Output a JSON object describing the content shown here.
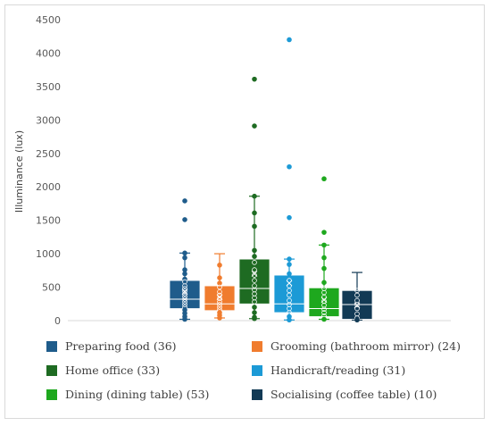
{
  "chart_data": {
    "type": "box",
    "ylabel": "Illuminance (lux)",
    "ylim": [
      0,
      4500
    ],
    "yticks": [
      0,
      500,
      1000,
      1500,
      2000,
      2500,
      3000,
      3500,
      4000,
      4500
    ],
    "ytick_labels": [
      "0",
      "500",
      "1000",
      "1500",
      "2000",
      "2500",
      "3000",
      "3500",
      "4000",
      "4500"
    ],
    "grid": false,
    "legend_position": "bottom",
    "series": [
      {
        "name": "Preparing food (36)",
        "color": "#1f5c8b",
        "min": 20,
        "q1": 180,
        "median": 320,
        "q3": 600,
        "max": 1010,
        "mean": 430,
        "points": [
          1790,
          1510,
          1010,
          940,
          760,
          700,
          620,
          580,
          520,
          480,
          440,
          400,
          360,
          320,
          280,
          240,
          200,
          160,
          110,
          60,
          20
        ],
        "outliers": [
          1790,
          1510
        ]
      },
      {
        "name": "Grooming (bathroom mirror) (24)",
        "color": "#f07c2e",
        "min": 40,
        "q1": 150,
        "median": 250,
        "q3": 520,
        "max": 1000,
        "mean": 350,
        "points": [
          830,
          640,
          560,
          500,
          430,
          380,
          330,
          280,
          240,
          200,
          160,
          120,
          80,
          40
        ],
        "outliers": []
      },
      {
        "name": "Home office (33)",
        "color": "#1e6b22",
        "min": 30,
        "q1": 250,
        "median": 480,
        "q3": 920,
        "max": 1860,
        "mean": 700,
        "points": [
          3610,
          2910,
          1860,
          1610,
          1410,
          1050,
          960,
          870,
          760,
          680,
          600,
          520,
          460,
          400,
          340,
          280,
          200,
          120,
          50,
          30
        ],
        "outliers": [
          3610,
          2910
        ]
      },
      {
        "name": "Handicraft/reading (31)",
        "color": "#1c9ad6",
        "min": 10,
        "q1": 120,
        "median": 250,
        "q3": 680,
        "max": 920,
        "mean": 560,
        "points": [
          4200,
          2300,
          1540,
          920,
          840,
          700,
          600,
          520,
          450,
          380,
          300,
          240,
          180,
          120,
          60,
          10
        ],
        "outliers": [
          4200,
          2300,
          1540
        ]
      },
      {
        "name": "Dining (dining table) (53)",
        "color": "#1ea81e",
        "min": 20,
        "q1": 60,
        "median": 180,
        "q3": 490,
        "max": 1130,
        "mean": 310,
        "points": [
          2120,
          1320,
          1130,
          940,
          780,
          570,
          480,
          420,
          350,
          290,
          230,
          170,
          120,
          70,
          20
        ],
        "outliers": [
          2120
        ]
      },
      {
        "name": "Socialising (coffee table) (10)",
        "color": "#123a55",
        "min": 10,
        "q1": 20,
        "median": 240,
        "q3": 450,
        "max": 720,
        "mean": 230,
        "points": [
          450,
          380,
          300,
          240,
          180,
          100,
          40,
          10
        ],
        "outliers": []
      }
    ]
  }
}
